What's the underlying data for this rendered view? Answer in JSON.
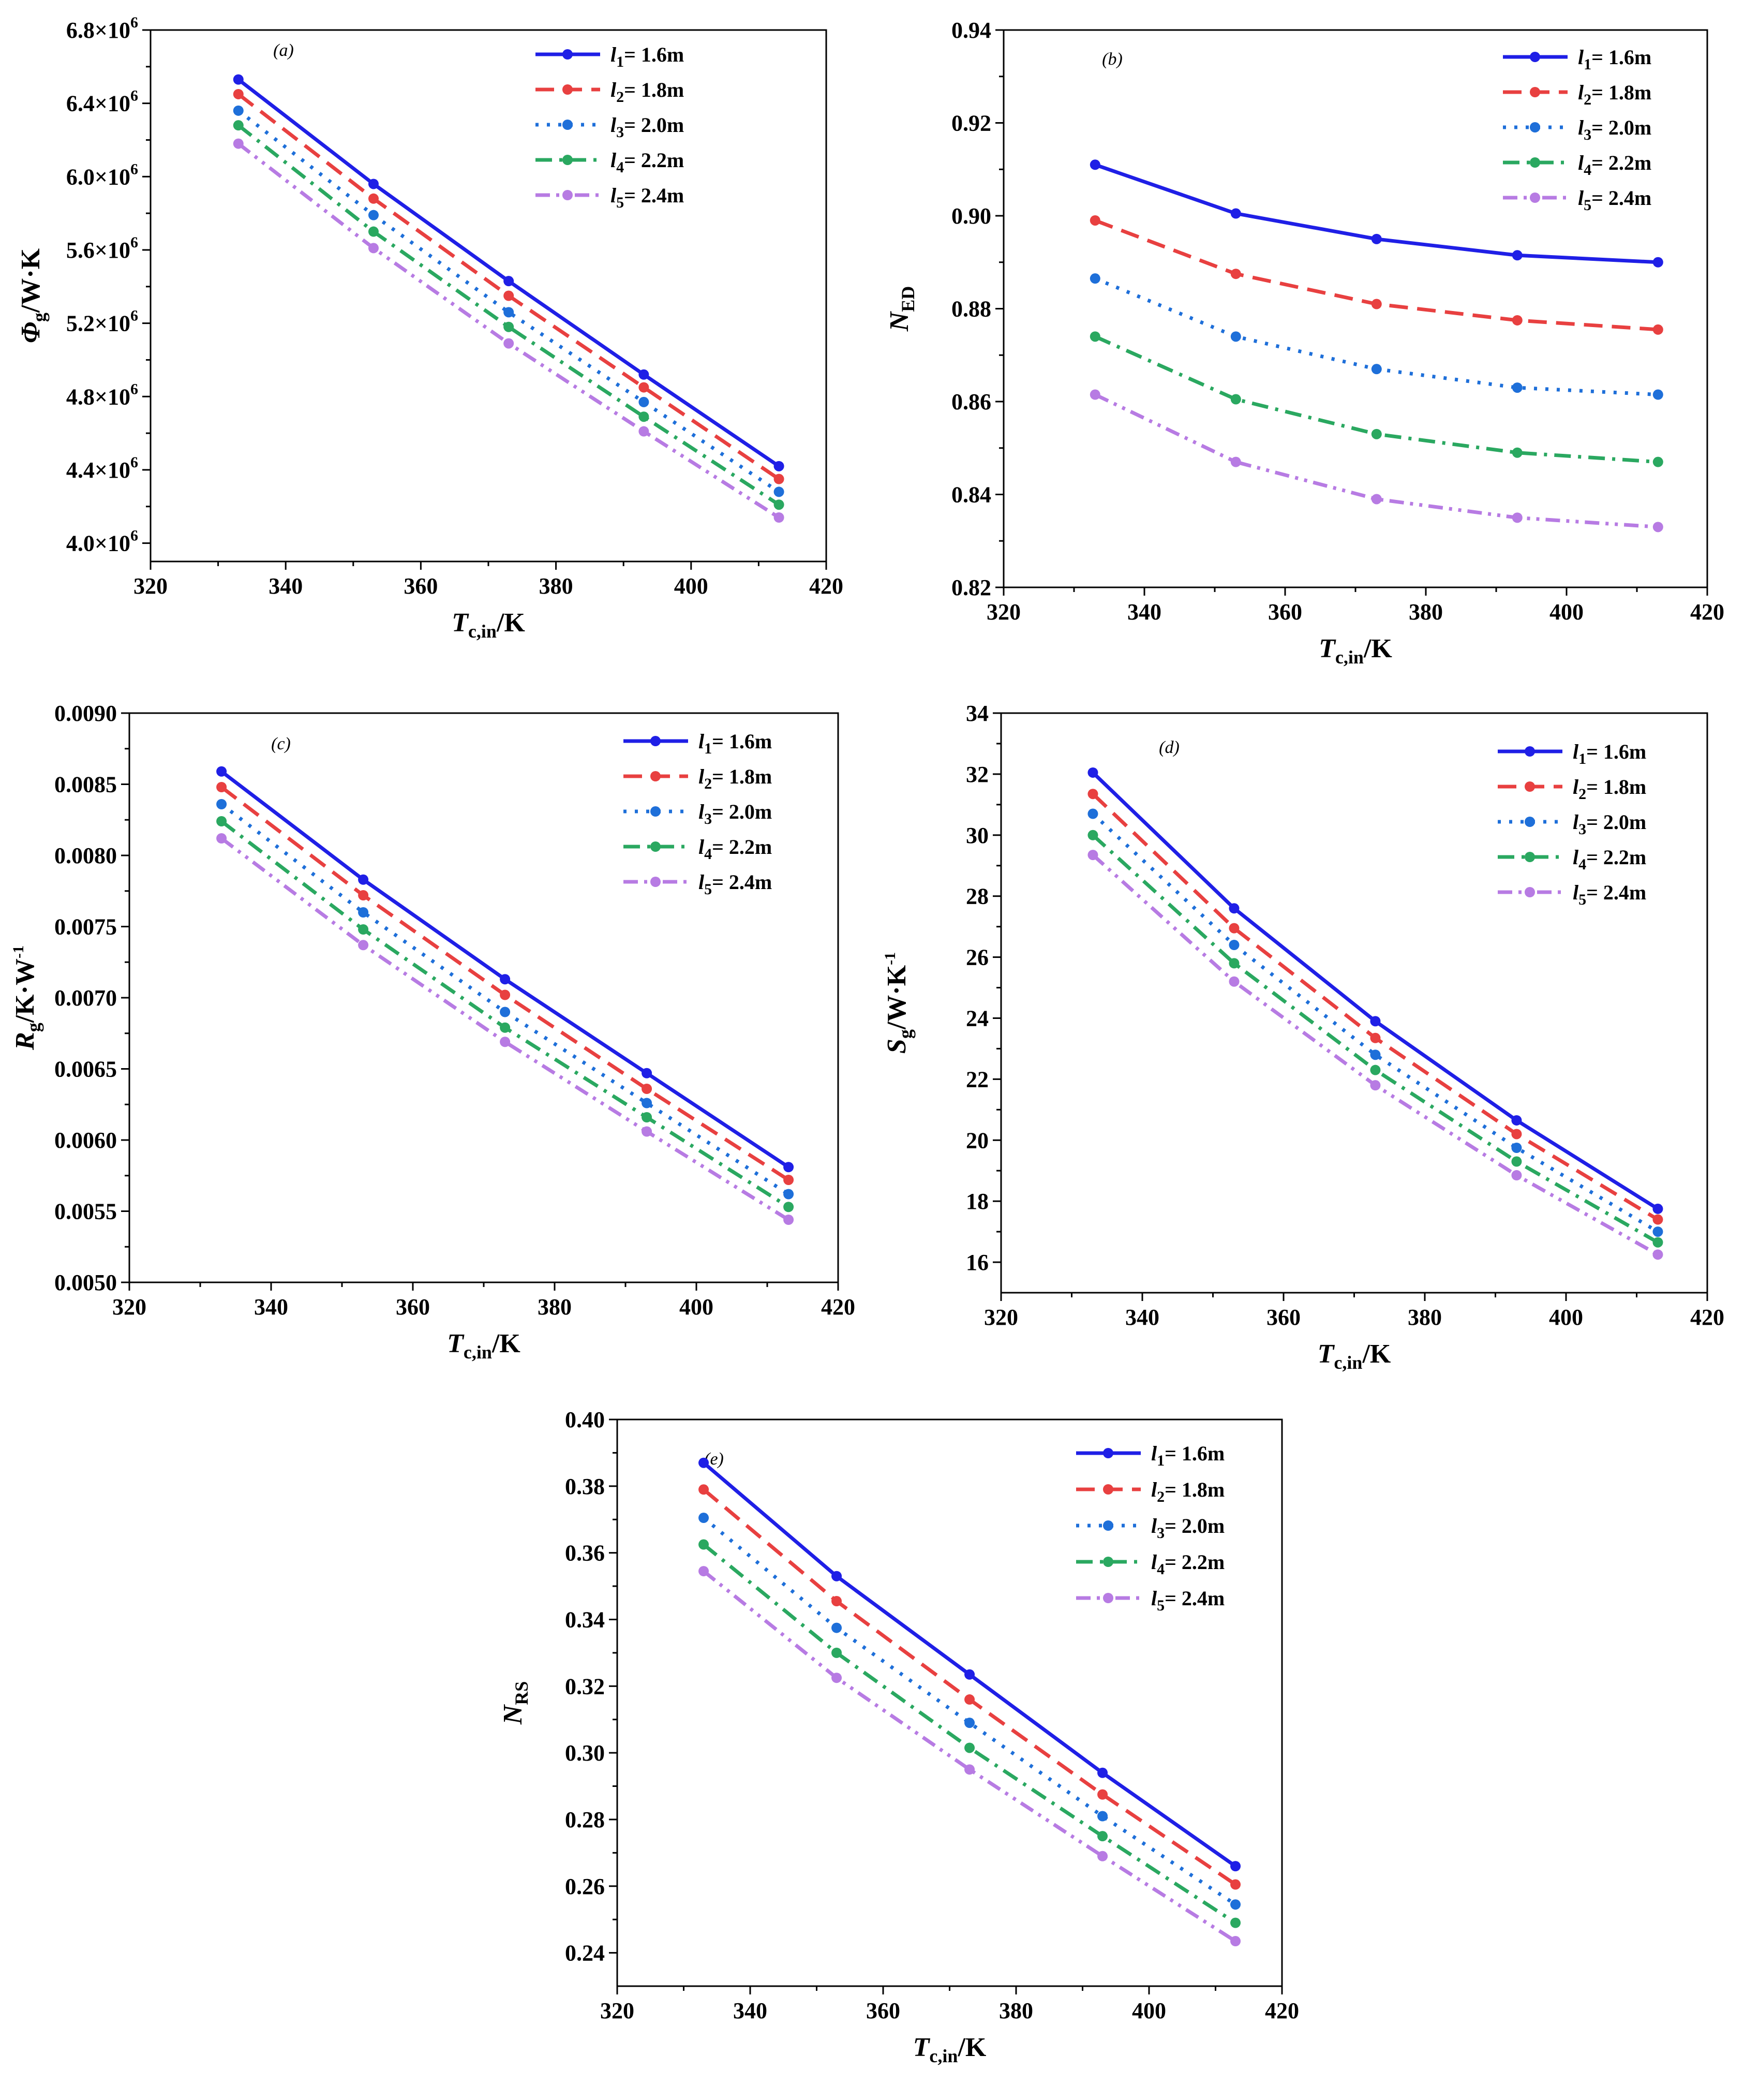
{
  "chart_data": [
    {
      "type": "line",
      "panel": "(a)",
      "ylabel": "Φg/W·K",
      "xlabel": "Tc,in/K",
      "xlim": [
        320,
        420
      ],
      "x_ticks": [
        "320",
        "340",
        "360",
        "380",
        "400",
        "420"
      ],
      "ylim": [
        3900000.0,
        6800000.0
      ],
      "y_ticks": [
        {
          "value": 4000000.0,
          "mant": "4.0×10",
          "exp": "6"
        },
        {
          "value": 4400000.0,
          "mant": "4.4×10",
          "exp": "6"
        },
        {
          "value": 4800000.0,
          "mant": "4.8×10",
          "exp": "6"
        },
        {
          "value": 5200000.0,
          "mant": "5.2×10",
          "exp": "6"
        },
        {
          "value": 5600000.0,
          "mant": "5.6×10",
          "exp": "6"
        },
        {
          "value": 6000000.0,
          "mant": "6.0×10",
          "exp": "6"
        },
        {
          "value": 6400000.0,
          "mant": "6.4×10",
          "exp": "6"
        },
        {
          "value": 6800000.0,
          "mant": "6.8×10",
          "exp": "6"
        }
      ],
      "legend_position": "top-right",
      "x": [
        333,
        353,
        373,
        393,
        413
      ],
      "series": [
        {
          "name": "l1= 1.6m",
          "values": [
            6530000,
            5960000,
            5430000,
            4920000,
            4420000
          ]
        },
        {
          "name": "l2= 1.8m",
          "values": [
            6450000,
            5880000,
            5350000,
            4850000,
            4350000
          ]
        },
        {
          "name": "l3= 2.0m",
          "values": [
            6360000,
            5790000,
            5260000,
            4770000,
            4280000
          ]
        },
        {
          "name": "l4= 2.2m",
          "values": [
            6280000,
            5700000,
            5180000,
            4690000,
            4210000
          ]
        },
        {
          "name": "l5= 2.4m",
          "values": [
            6180000,
            5610000,
            5090000,
            4610000,
            4140000
          ]
        }
      ]
    },
    {
      "type": "line",
      "panel": "(b)",
      "ylabel": "NED",
      "xlabel": "Tc,in/K",
      "xlim": [
        320,
        420
      ],
      "x_ticks": [
        "320",
        "340",
        "360",
        "380",
        "400",
        "420"
      ],
      "ylim": [
        0.82,
        0.94
      ],
      "y_ticks": [
        {
          "value": 0.82,
          "mant": "0.82"
        },
        {
          "value": 0.84,
          "mant": "0.84"
        },
        {
          "value": 0.86,
          "mant": "0.86"
        },
        {
          "value": 0.88,
          "mant": "0.88"
        },
        {
          "value": 0.9,
          "mant": "0.90"
        },
        {
          "value": 0.92,
          "mant": "0.92"
        },
        {
          "value": 0.94,
          "mant": "0.94"
        }
      ],
      "legend_position": "top-right",
      "x": [
        333,
        353,
        373,
        393,
        413
      ],
      "series": [
        {
          "name": "l1= 1.6m",
          "values": [
            0.911,
            0.9005,
            0.895,
            0.8915,
            0.89
          ]
        },
        {
          "name": "l2= 1.8m",
          "values": [
            0.899,
            0.8875,
            0.881,
            0.8775,
            0.8755
          ]
        },
        {
          "name": "l3= 2.0m",
          "values": [
            0.8865,
            0.874,
            0.867,
            0.863,
            0.8615
          ]
        },
        {
          "name": "l4= 2.2m",
          "values": [
            0.874,
            0.8605,
            0.853,
            0.849,
            0.847
          ]
        },
        {
          "name": "l5= 2.4m",
          "values": [
            0.8615,
            0.847,
            0.839,
            0.835,
            0.833
          ]
        }
      ]
    },
    {
      "type": "line",
      "panel": "(c)",
      "ylabel": "Rg/K·W-1",
      "xlabel": "Tc,in/K",
      "xlim": [
        320,
        420
      ],
      "x_ticks": [
        "320",
        "340",
        "360",
        "380",
        "400",
        "420"
      ],
      "ylim": [
        0.005,
        0.009
      ],
      "y_ticks": [
        {
          "value": 0.005,
          "mant": "0.0050"
        },
        {
          "value": 0.0055,
          "mant": "0.0055"
        },
        {
          "value": 0.006,
          "mant": "0.0060"
        },
        {
          "value": 0.0065,
          "mant": "0.0065"
        },
        {
          "value": 0.007,
          "mant": "0.0070"
        },
        {
          "value": 0.0075,
          "mant": "0.0075"
        },
        {
          "value": 0.008,
          "mant": "0.0080"
        },
        {
          "value": 0.0085,
          "mant": "0.0085"
        },
        {
          "value": 0.009,
          "mant": "0.0090"
        }
      ],
      "legend_position": "top-right",
      "x": [
        333,
        353,
        373,
        393,
        413
      ],
      "series": [
        {
          "name": "l1= 1.6m",
          "values": [
            0.00859,
            0.00783,
            0.00713,
            0.00647,
            0.00581
          ]
        },
        {
          "name": "l2= 1.8m",
          "values": [
            0.00848,
            0.00772,
            0.00702,
            0.00636,
            0.00572
          ]
        },
        {
          "name": "l3= 2.0m",
          "values": [
            0.00836,
            0.0076,
            0.0069,
            0.00626,
            0.00562
          ]
        },
        {
          "name": "l4= 2.2m",
          "values": [
            0.00824,
            0.00748,
            0.00679,
            0.00616,
            0.00553
          ]
        },
        {
          "name": "l5= 2.4m",
          "values": [
            0.00812,
            0.00737,
            0.00669,
            0.00606,
            0.00544
          ]
        }
      ]
    },
    {
      "type": "line",
      "panel": "(d)",
      "ylabel": "Sg/W·K-1",
      "xlabel": "Tc,in/K",
      "xlim": [
        320,
        420
      ],
      "x_ticks": [
        "320",
        "340",
        "360",
        "380",
        "400",
        "420"
      ],
      "ylim": [
        15,
        34
      ],
      "y_ticks": [
        {
          "value": 16,
          "mant": "16"
        },
        {
          "value": 18,
          "mant": "18"
        },
        {
          "value": 20,
          "mant": "20"
        },
        {
          "value": 22,
          "mant": "22"
        },
        {
          "value": 24,
          "mant": "24"
        },
        {
          "value": 26,
          "mant": "26"
        },
        {
          "value": 28,
          "mant": "28"
        },
        {
          "value": 30,
          "mant": "30"
        },
        {
          "value": 32,
          "mant": "32"
        },
        {
          "value": 34,
          "mant": "34"
        }
      ],
      "legend_position": "top-right",
      "x": [
        333,
        353,
        373,
        393,
        413
      ],
      "series": [
        {
          "name": "l1= 1.6m",
          "values": [
            32.05,
            27.6,
            23.9,
            20.65,
            17.75
          ]
        },
        {
          "name": "l2= 1.8m",
          "values": [
            31.35,
            26.95,
            23.35,
            20.2,
            17.4
          ]
        },
        {
          "name": "l3= 2.0m",
          "values": [
            30.7,
            26.4,
            22.8,
            19.75,
            17.0
          ]
        },
        {
          "name": "l4= 2.2m",
          "values": [
            30.0,
            25.8,
            22.3,
            19.3,
            16.65
          ]
        },
        {
          "name": "l5= 2.4m",
          "values": [
            29.35,
            25.2,
            21.8,
            18.85,
            16.25
          ]
        }
      ]
    },
    {
      "type": "line",
      "panel": "(e)",
      "ylabel": "NRS",
      "xlabel": "Tc,in/K",
      "xlim": [
        320,
        420
      ],
      "x_ticks": [
        "320",
        "340",
        "360",
        "380",
        "400",
        "420"
      ],
      "ylim": [
        0.23,
        0.4
      ],
      "y_ticks": [
        {
          "value": 0.24,
          "mant": "0.24"
        },
        {
          "value": 0.26,
          "mant": "0.26"
        },
        {
          "value": 0.28,
          "mant": "0.28"
        },
        {
          "value": 0.3,
          "mant": "0.30"
        },
        {
          "value": 0.32,
          "mant": "0.32"
        },
        {
          "value": 0.34,
          "mant": "0.34"
        },
        {
          "value": 0.36,
          "mant": "0.36"
        },
        {
          "value": 0.38,
          "mant": "0.38"
        },
        {
          "value": 0.4,
          "mant": "0.40"
        }
      ],
      "legend_position": "top-right",
      "x": [
        333,
        353,
        373,
        393,
        413
      ],
      "series": [
        {
          "name": "l1= 1.6m",
          "values": [
            0.387,
            0.353,
            0.3235,
            0.294,
            0.266
          ]
        },
        {
          "name": "l2= 1.8m",
          "values": [
            0.379,
            0.3455,
            0.316,
            0.2875,
            0.2605
          ]
        },
        {
          "name": "l3= 2.0m",
          "values": [
            0.3705,
            0.3375,
            0.309,
            0.281,
            0.2545
          ]
        },
        {
          "name": "l4= 2.2m",
          "values": [
            0.3625,
            0.33,
            0.3015,
            0.275,
            0.249
          ]
        },
        {
          "name": "l5= 2.4m",
          "values": [
            0.3545,
            0.3225,
            0.295,
            0.269,
            0.2435
          ]
        }
      ]
    }
  ],
  "series_styles": [
    {
      "color": "#1f1fe6",
      "dash": "none"
    },
    {
      "color": "#e84040",
      "dash": "dashed"
    },
    {
      "color": "#1e6fd9",
      "dash": "dotted"
    },
    {
      "color": "#2aa860",
      "dash": "dash-dot"
    },
    {
      "color": "#b77be3",
      "dash": "dash-dot-dot"
    }
  ],
  "legend_labels": [
    {
      "base": "l",
      "sub": "1",
      "rest": "= 1.6m"
    },
    {
      "base": "l",
      "sub": "2",
      "rest": "= 1.8m"
    },
    {
      "base": "l",
      "sub": "3",
      "rest": "= 2.0m"
    },
    {
      "base": "l",
      "sub": "4",
      "rest": "= 2.2m"
    },
    {
      "base": "l",
      "sub": "5",
      "rest": "= 2.4m"
    }
  ],
  "axis_titles": {
    "x": {
      "main": "T",
      "sub": "c,in",
      "rest": "/K"
    },
    "a": {
      "main": "Φ",
      "sub": "g",
      "rest": "/W·K",
      "sup": ""
    },
    "b": {
      "main": "N",
      "sub": "ED",
      "rest": "",
      "sup": ""
    },
    "c": {
      "main": "R",
      "sub": "g",
      "rest": "/K·W",
      "sup": "-1"
    },
    "d": {
      "main": "S",
      "sub": "g",
      "rest": "/W·K",
      "sup": "-1"
    },
    "e": {
      "main": "N",
      "sub": "RS",
      "rest": "",
      "sup": ""
    }
  }
}
